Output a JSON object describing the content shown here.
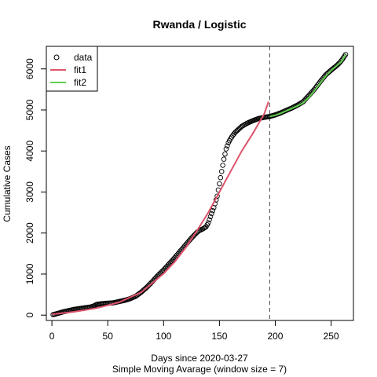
{
  "chart_data": {
    "type": "scatter",
    "title": "Rwanda / Logistic",
    "xlabel": "Days since 2020-03-27",
    "xlabel2": "Simple Moving Avarage (window size = 7)",
    "ylabel": "Cumulative Cases",
    "xlim": [
      -5,
      270
    ],
    "ylim": [
      -130,
      6550
    ],
    "x_ticks": [
      0,
      50,
      100,
      150,
      200,
      250
    ],
    "y_ticks": [
      0,
      1000,
      2000,
      3000,
      4000,
      5000,
      6000
    ],
    "x_tick_labels": [
      "0",
      "50",
      "100",
      "150",
      "200",
      "250"
    ],
    "y_tick_labels": [
      "0",
      "1000",
      "2000",
      "3000",
      "4000",
      "5000",
      "6000"
    ],
    "grid": false,
    "legend_position": "top-left",
    "vline": {
      "x": 195,
      "style": "dashed",
      "color": "#444444"
    },
    "series": [
      {
        "name": "data",
        "kind": "points",
        "color": "#000000",
        "x": [
          1,
          5,
          10,
          15,
          20,
          25,
          30,
          35,
          38,
          40,
          45,
          50,
          55,
          60,
          65,
          70,
          75,
          80,
          85,
          90,
          95,
          100,
          105,
          110,
          115,
          120,
          125,
          130,
          132,
          135,
          138,
          140,
          142,
          145,
          148,
          150,
          152,
          154,
          156,
          158,
          160,
          162,
          164,
          166,
          168,
          170,
          175,
          180,
          185,
          190,
          195,
          200,
          205,
          210,
          215,
          220,
          225,
          230,
          235,
          240,
          245,
          250,
          255,
          258,
          260,
          263
        ],
        "y": [
          10,
          40,
          80,
          110,
          140,
          160,
          180,
          200,
          230,
          260,
          280,
          290,
          300,
          330,
          360,
          400,
          460,
          560,
          680,
          820,
          970,
          1100,
          1250,
          1400,
          1560,
          1720,
          1880,
          2020,
          2060,
          2100,
          2150,
          2250,
          2400,
          2620,
          2900,
          3200,
          3500,
          3800,
          4050,
          4200,
          4300,
          4380,
          4450,
          4500,
          4550,
          4600,
          4680,
          4740,
          4790,
          4820,
          4840,
          4880,
          4930,
          4990,
          5050,
          5120,
          5200,
          5350,
          5500,
          5680,
          5850,
          5970,
          6080,
          6160,
          6230,
          6350
        ]
      },
      {
        "name": "fit1",
        "kind": "line",
        "color": "#DF536B",
        "x": [
          0,
          20,
          40,
          60,
          80,
          100,
          110,
          120,
          130,
          140,
          150,
          160,
          170,
          180,
          190,
          194
        ],
        "y": [
          20,
          80,
          170,
          310,
          560,
          1010,
          1300,
          1650,
          2060,
          2500,
          3000,
          3500,
          4000,
          4430,
          4900,
          5200
        ]
      },
      {
        "name": "fit2",
        "kind": "line",
        "color": "#61D04F",
        "x": [
          195,
          200,
          205,
          210,
          215,
          220,
          225,
          230,
          235,
          240,
          245,
          250,
          255,
          260,
          263
        ],
        "y": [
          4840,
          4870,
          4920,
          4980,
          5040,
          5100,
          5170,
          5300,
          5460,
          5640,
          5820,
          5960,
          6080,
          6200,
          6350
        ]
      }
    ]
  }
}
